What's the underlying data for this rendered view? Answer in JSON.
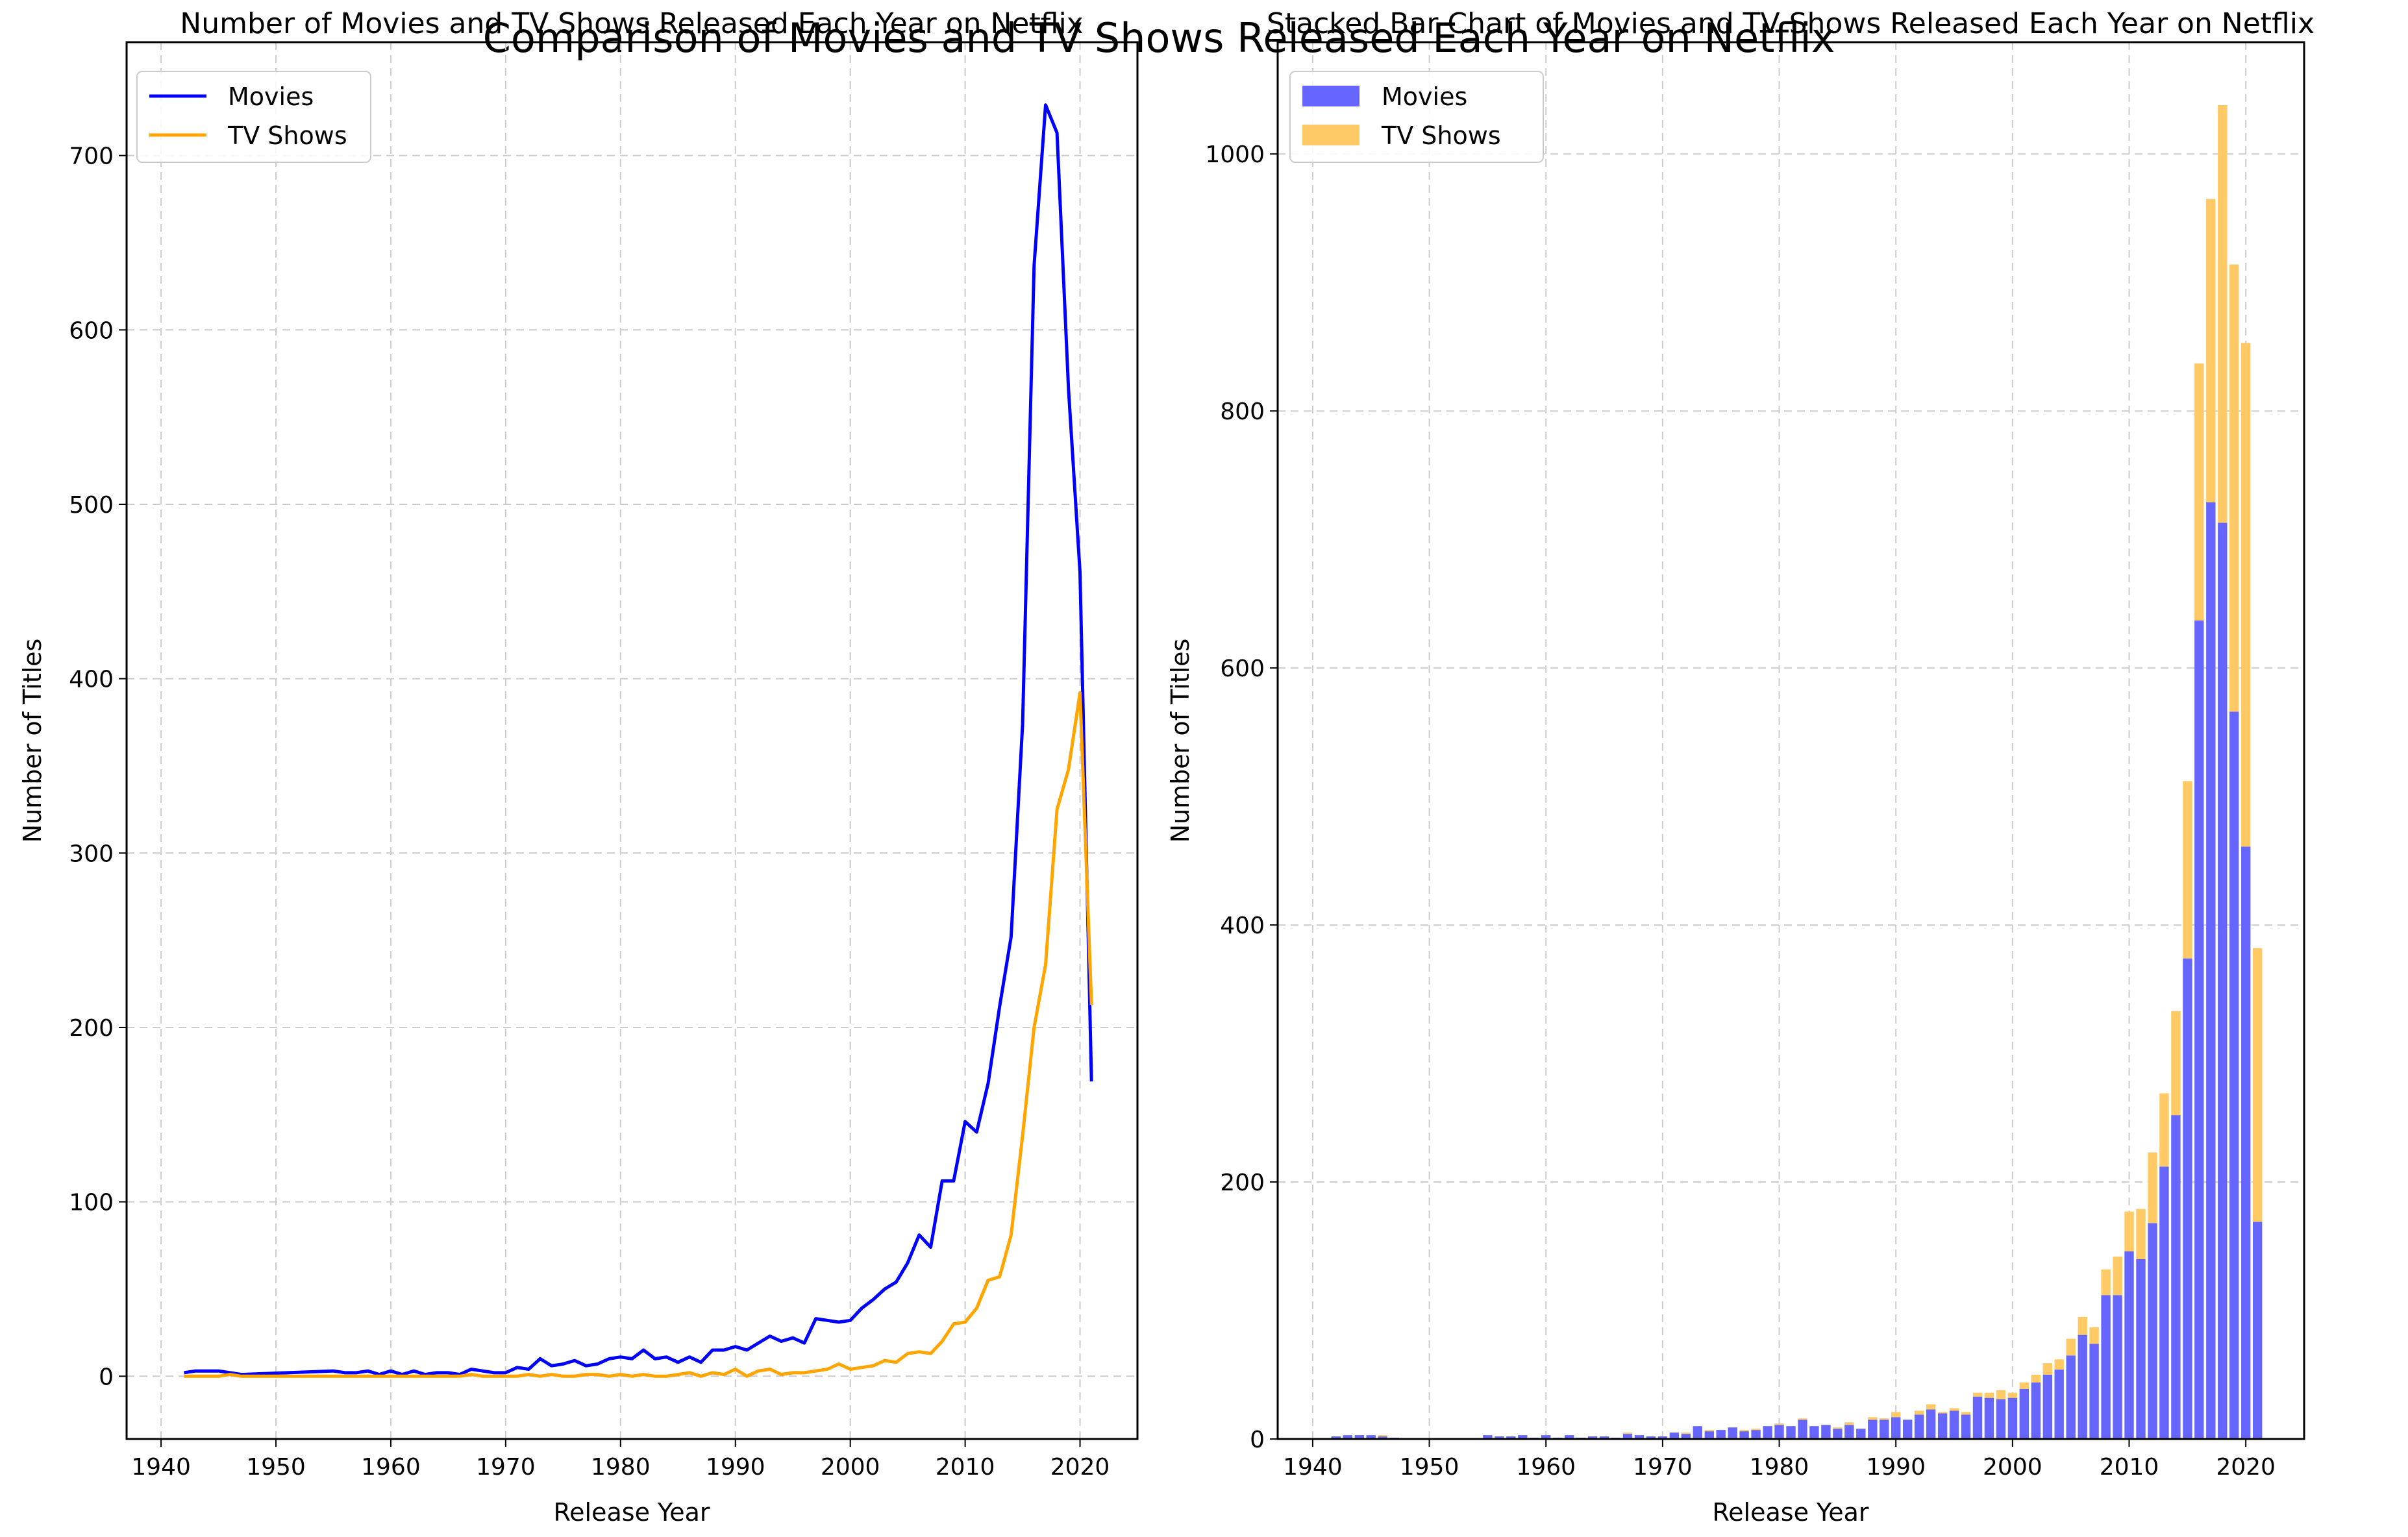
{
  "figure": {
    "suptitle": "Comparison of Movies and TV Shows Released Each Year on Netflix"
  },
  "colors": {
    "movies": "#0000ff",
    "tv": "#ffa500",
    "movies_bar": "#6666ff",
    "tv_bar": "#ffc966",
    "grid": "#cccccc"
  },
  "chart_data": [
    {
      "type": "line",
      "title": "Number of Movies and TV Shows Released Each Year on Netflix",
      "xlabel": "Release Year",
      "ylabel": "Number of Titles",
      "xlim": [
        1937,
        2025
      ],
      "ylim": [
        -36,
        765
      ],
      "xticks": [
        1940,
        1950,
        1960,
        1970,
        1980,
        1990,
        2000,
        2010,
        2020
      ],
      "yticks": [
        0,
        100,
        200,
        300,
        400,
        500,
        600,
        700
      ],
      "grid": true,
      "legend_position": "top-left",
      "series": [
        {
          "name": "Movies",
          "x": [
            1942,
            1943,
            1944,
            1945,
            1946,
            1947,
            1955,
            1956,
            1957,
            1958,
            1959,
            1960,
            1961,
            1962,
            1963,
            1964,
            1965,
            1966,
            1967,
            1968,
            1969,
            1970,
            1971,
            1972,
            1973,
            1974,
            1975,
            1976,
            1977,
            1978,
            1979,
            1980,
            1981,
            1982,
            1983,
            1984,
            1985,
            1986,
            1987,
            1988,
            1989,
            1990,
            1991,
            1992,
            1993,
            1994,
            1995,
            1996,
            1997,
            1998,
            1999,
            2000,
            2001,
            2002,
            2003,
            2004,
            2005,
            2006,
            2007,
            2008,
            2009,
            2010,
            2011,
            2012,
            2013,
            2014,
            2015,
            2016,
            2017,
            2018,
            2019,
            2020,
            2021
          ],
          "values": [
            2,
            3,
            3,
            3,
            2,
            1,
            3,
            2,
            2,
            3,
            1,
            3,
            1,
            3,
            1,
            2,
            2,
            1,
            4,
            3,
            2,
            2,
            5,
            4,
            10,
            6,
            7,
            9,
            6,
            7,
            10,
            11,
            10,
            15,
            10,
            11,
            8,
            11,
            8,
            15,
            15,
            17,
            15,
            19,
            23,
            20,
            22,
            19,
            33,
            32,
            31,
            32,
            39,
            44,
            50,
            54,
            65,
            81,
            74,
            112,
            112,
            146,
            140,
            168,
            212,
            252,
            374,
            637,
            729,
            713,
            566,
            461,
            169
          ]
        },
        {
          "name": "TV Shows",
          "x": [
            1942,
            1943,
            1944,
            1945,
            1946,
            1947,
            1955,
            1956,
            1957,
            1958,
            1959,
            1960,
            1961,
            1962,
            1963,
            1964,
            1965,
            1966,
            1967,
            1968,
            1969,
            1970,
            1971,
            1972,
            1973,
            1974,
            1975,
            1976,
            1977,
            1978,
            1979,
            1980,
            1981,
            1982,
            1983,
            1984,
            1985,
            1986,
            1987,
            1988,
            1989,
            1990,
            1991,
            1992,
            1993,
            1994,
            1995,
            1996,
            1997,
            1998,
            1999,
            2000,
            2001,
            2002,
            2003,
            2004,
            2005,
            2006,
            2007,
            2008,
            2009,
            2010,
            2011,
            2012,
            2013,
            2014,
            2015,
            2016,
            2017,
            2018,
            2019,
            2020,
            2021
          ],
          "values": [
            0,
            0,
            0,
            0,
            1,
            0,
            0,
            0,
            0,
            0,
            0,
            0,
            0,
            0,
            0,
            0,
            0,
            0,
            1,
            0,
            0,
            0,
            0,
            1,
            0,
            1,
            0,
            0,
            1,
            1,
            0,
            1,
            0,
            1,
            0,
            0,
            1,
            2,
            0,
            2,
            1,
            4,
            0,
            3,
            4,
            1,
            2,
            2,
            3,
            4,
            7,
            4,
            5,
            6,
            9,
            8,
            13,
            14,
            13,
            20,
            30,
            31,
            39,
            55,
            57,
            81,
            138,
            200,
            236,
            325,
            348,
            392,
            213
          ]
        }
      ]
    },
    {
      "type": "bar",
      "stacked": true,
      "title": "Stacked Bar Chart of Movies and TV Shows Released Each Year on Netflix",
      "xlabel": "Release Year",
      "ylabel": "Number of Titles",
      "xlim": [
        1937,
        2025
      ],
      "ylim": [
        0,
        1087
      ],
      "xticks": [
        1940,
        1950,
        1960,
        1970,
        1980,
        1990,
        2000,
        2010,
        2020
      ],
      "yticks": [
        0,
        200,
        400,
        600,
        800,
        1000
      ],
      "grid": true,
      "legend_position": "top-left",
      "series": [
        {
          "name": "Movies",
          "ref": "line.Movies"
        },
        {
          "name": "TV Shows",
          "ref": "line.TV Shows"
        }
      ]
    }
  ]
}
